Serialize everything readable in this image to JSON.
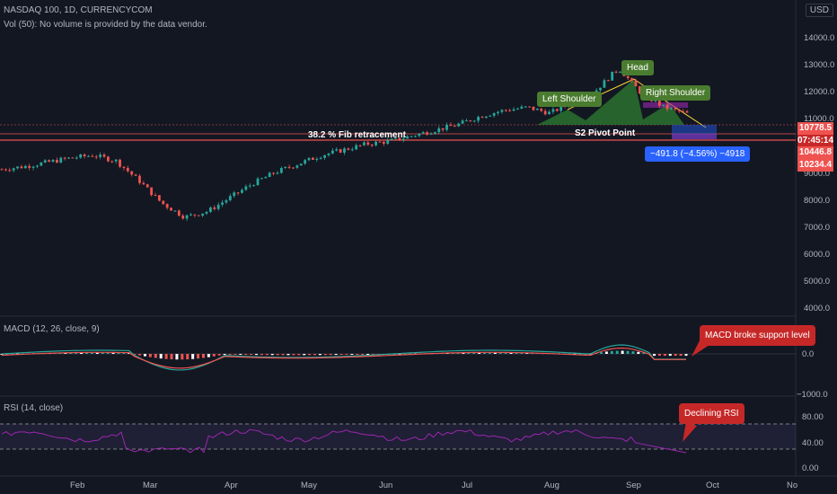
{
  "header": {
    "symbol": "NASDAQ 100, 1D, CURRENCYCOM",
    "volume_note": "Vol (50): No volume is provided by the data vendor.",
    "currency": "USD"
  },
  "price_axis": {
    "ticks": [
      "14000.0",
      "13000.0",
      "12000.0",
      "11000.0",
      "9000.0",
      "8000.0",
      "7000.0",
      "6000.0",
      "5000.0",
      "4000.0"
    ],
    "tags": [
      {
        "label": "10778.5",
        "color": "#ef5350"
      },
      {
        "label": "07:45:14",
        "color": "#ef5350"
      },
      {
        "label": "10446.8",
        "color": "#ef5350"
      },
      {
        "label": "10234.4",
        "color": "#ef5350"
      }
    ]
  },
  "annotations": {
    "head": "Head",
    "left_shoulder": "Left Shoulder",
    "right_shoulder": "Right Shoulder",
    "fib": "38.2 % Fib retracement",
    "pivot": "S2 Pivot Point",
    "measure": "−491.8 (−4.56%) −4918"
  },
  "macd_pane": {
    "title": "MACD (12, 26, close, 9)",
    "ticks": [
      "0.0",
      "−1000.0"
    ],
    "callout": "MACD broke support level"
  },
  "rsi_pane": {
    "title": "RSI (14, close)",
    "ticks": [
      "80.00",
      "40.00",
      "0.00"
    ],
    "callout": "Declining RSI"
  },
  "time_axis": {
    "labels": [
      "Feb",
      "Mar",
      "Apr",
      "May",
      "Jun",
      "Jul",
      "Aug",
      "Sep",
      "Oct",
      "No"
    ]
  },
  "chart_data": {
    "type": "candlestick",
    "series": [
      {
        "name": "NASDAQ 100",
        "values": [
          8800,
          8900,
          9050,
          9200,
          9300,
          9100,
          8400,
          7600,
          7100,
          7300,
          7800,
          8300,
          8700,
          9000,
          9300,
          9500,
          9700,
          9800,
          10000,
          10200,
          10400,
          10700,
          10900,
          11000,
          10800,
          11200,
          11600,
          12400,
          11500,
          11000,
          10779
        ]
      }
    ],
    "ylim": [
      3800,
      14500
    ]
  },
  "colors": {
    "up": "#26a69a",
    "down": "#ef5350",
    "background": "#131722",
    "grid": "#1e222d"
  }
}
